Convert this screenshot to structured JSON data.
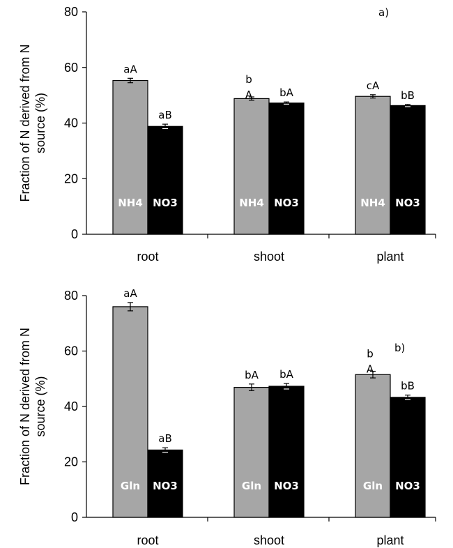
{
  "chart_data": [
    {
      "type": "bar",
      "panel_label": "a)",
      "ylabel_lines": [
        "Fraction of N derived from N",
        "source (%)"
      ],
      "ylim": [
        0,
        80
      ],
      "yticks": [
        0,
        20,
        40,
        60,
        80
      ],
      "categories": [
        "root",
        "shoot",
        "plant"
      ],
      "bar_labels": [
        "NH4",
        "NO3"
      ],
      "colors": [
        "#a6a6a6",
        "#000000"
      ],
      "series": [
        {
          "values": [
            55.3,
            48.8,
            49.6
          ],
          "errors": [
            0.8,
            0.6,
            0.6
          ],
          "letters": [
            "aA",
            "b\nA",
            "cA"
          ]
        },
        {
          "values": [
            38.8,
            47.2,
            46.3
          ],
          "errors": [
            0.8,
            0.4,
            0.4
          ],
          "letters": [
            "aB",
            "bA",
            "bB"
          ]
        }
      ]
    },
    {
      "type": "bar",
      "panel_label": "b)",
      "ylabel_lines": [
        "Fraction of N derived from N",
        "source (%)"
      ],
      "ylim": [
        0,
        80
      ],
      "yticks": [
        0,
        20,
        40,
        60,
        80
      ],
      "categories": [
        "root",
        "shoot",
        "plant"
      ],
      "bar_labels": [
        "Gln",
        "NO3"
      ],
      "colors": [
        "#a6a6a6",
        "#000000"
      ],
      "series": [
        {
          "values": [
            76.0,
            46.9,
            51.5
          ],
          "errors": [
            1.5,
            1.2,
            1.2
          ],
          "letters": [
            "aA",
            "bA",
            "b\nA"
          ]
        },
        {
          "values": [
            24.3,
            47.3,
            43.3
          ],
          "errors": [
            0.8,
            1.0,
            0.8
          ],
          "letters": [
            "aB",
            "bA",
            "bB"
          ]
        }
      ]
    }
  ]
}
